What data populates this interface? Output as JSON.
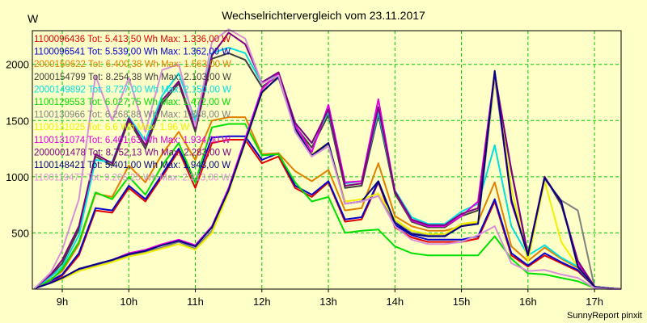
{
  "chart_data": {
    "type": "line",
    "title": "Wechselrichtervergleich vom 23.11.2017",
    "ylabel": "W",
    "xlabel": "",
    "footer": "SunnyReport pinxit",
    "ylim": [
      0,
      2300
    ],
    "xlim": [
      8.55,
      17.4
    ],
    "yticks": [
      500,
      1000,
      1500,
      2000
    ],
    "ytick_labels": [
      "500",
      "1000",
      "1500",
      "2000"
    ],
    "xticks": [
      9,
      10,
      11,
      12,
      13,
      14,
      15,
      16,
      17
    ],
    "xtick_labels": [
      "9h",
      "10h",
      "11h",
      "12h",
      "13h",
      "14h",
      "15h",
      "16h",
      "17h"
    ],
    "grid": true,
    "legend_position": "top-left",
    "x": [
      8.58,
      8.83,
      9.0,
      9.25,
      9.5,
      9.75,
      10.0,
      10.25,
      10.5,
      10.75,
      11.0,
      11.25,
      11.5,
      11.75,
      12.0,
      12.25,
      12.5,
      12.75,
      13.0,
      13.25,
      13.5,
      13.75,
      14.0,
      14.25,
      14.5,
      14.75,
      15.0,
      15.25,
      15.5,
      15.75,
      16.0,
      16.25,
      16.5,
      16.75,
      17.0,
      17.25,
      17.4
    ],
    "series": [
      {
        "name": "1100096436",
        "label": "1100096436 Tot: 5.413,50 Wh Max: 1.336,00 W",
        "color": "#e00000",
        "values": [
          5,
          70,
          120,
          300,
          700,
          680,
          900,
          780,
          1000,
          1230,
          900,
          1300,
          1330,
          1330,
          1120,
          1180,
          900,
          820,
          950,
          600,
          620,
          950,
          550,
          460,
          420,
          420,
          420,
          450,
          780,
          300,
          200,
          300,
          230,
          160,
          20,
          5,
          0
        ]
      },
      {
        "name": "1100096541",
        "label": "1100096541 Tot: 5.539,00 Wh Max: 1.362,00 W",
        "color": "#0000d0",
        "values": [
          5,
          75,
          130,
          320,
          720,
          700,
          920,
          800,
          1020,
          1250,
          950,
          1350,
          1360,
          1360,
          1150,
          1210,
          920,
          840,
          960,
          620,
          640,
          960,
          570,
          480,
          440,
          440,
          440,
          470,
          800,
          320,
          210,
          320,
          240,
          170,
          20,
          5,
          0
        ]
      },
      {
        "name": "2000150622",
        "label": "2000150622 Tot: 6.400,38 Wh Max: 1.563,00 W",
        "color": "#e08000",
        "values": [
          5,
          90,
          160,
          400,
          850,
          820,
          1100,
          950,
          1200,
          1400,
          1150,
          1500,
          1530,
          1530,
          1200,
          1210,
          1050,
          960,
          1060,
          700,
          720,
          1120,
          650,
          560,
          520,
          520,
          560,
          600,
          950,
          380,
          250,
          370,
          270,
          190,
          20,
          5,
          0
        ]
      },
      {
        "name": "2000154799",
        "label": "2000154799 Tot: 8.254,38 Wh Max: 2.103,00 W",
        "color": "#404040",
        "values": [
          5,
          120,
          230,
          530,
          1180,
          1100,
          1500,
          1250,
          1650,
          1830,
          1400,
          2050,
          2100,
          2040,
          1800,
          1900,
          1450,
          1260,
          1550,
          900,
          920,
          1550,
          850,
          600,
          550,
          550,
          650,
          700,
          1900,
          1050,
          300,
          1000,
          750,
          250,
          20,
          5,
          0
        ]
      },
      {
        "name": "2000149892",
        "label": "2000149892 Tot: 8.727,00 Wh Max: 2.150,00 W",
        "color": "#00e0e0",
        "values": [
          5,
          110,
          200,
          480,
          1150,
          1130,
          1530,
          1320,
          1720,
          1920,
          1500,
          2100,
          2150,
          2100,
          1830,
          1920,
          1480,
          1300,
          1580,
          940,
          960,
          1580,
          880,
          640,
          580,
          580,
          690,
          760,
          1280,
          560,
          300,
          390,
          280,
          200,
          20,
          5,
          0
        ]
      },
      {
        "name": "1100129553",
        "label": "1100129553 Tot: 6.027,75 Wh Max: 1.472,00 W",
        "color": "#00e000",
        "values": [
          5,
          80,
          180,
          420,
          860,
          800,
          1000,
          840,
          1100,
          1300,
          950,
          1440,
          1470,
          1470,
          1190,
          1200,
          950,
          780,
          820,
          500,
          520,
          530,
          380,
          320,
          300,
          300,
          300,
          300,
          470,
          270,
          140,
          130,
          100,
          70,
          10,
          0,
          0
        ]
      },
      {
        "name": "1100130966",
        "label": "1100130966 Tot: 6.268,88 Wh Max: 1.888,00 W",
        "color": "#808080",
        "values": [
          5,
          60,
          100,
          170,
          210,
          250,
          300,
          330,
          370,
          420,
          360,
          520,
          880,
          1320,
          1760,
          1880,
          1420,
          1180,
          1290,
          760,
          780,
          830,
          600,
          500,
          480,
          480,
          560,
          580,
          1880,
          800,
          300,
          980,
          790,
          700,
          20,
          5,
          0
        ]
      },
      {
        "name": "1100131025",
        "label": "1100131025 Tot: 6.6 Wh Max: 1.96 W",
        "color": "#f0f000",
        "values": [
          5,
          55,
          90,
          160,
          200,
          240,
          290,
          320,
          360,
          400,
          350,
          500,
          860,
          1300,
          1740,
          1900,
          1440,
          1200,
          1300,
          780,
          800,
          850,
          620,
          520,
          490,
          490,
          580,
          600,
          1900,
          900,
          250,
          960,
          420,
          200,
          20,
          5,
          0
        ]
      },
      {
        "name": "1100131074",
        "label": "1100131074 Tot: 6.401,63 Wh Max: 1.934,00 W",
        "color": "#e000e0",
        "values": [
          5,
          60,
          100,
          180,
          220,
          260,
          320,
          350,
          400,
          440,
          390,
          560,
          900,
          1340,
          1780,
          1920,
          1460,
          1220,
          1640,
          950,
          960,
          1690,
          870,
          610,
          560,
          560,
          650,
          780,
          1934,
          770,
          310,
          990,
          780,
          220,
          20,
          5,
          0
        ]
      },
      {
        "name": "2000001478",
        "label": "2000001478 Tot: 8.752,13 Wh Max: 2.283,00 W",
        "color": "#800080",
        "values": [
          5,
          130,
          260,
          560,
          1200,
          1120,
          1520,
          1280,
          1680,
          1850,
          1430,
          2080,
          2283,
          2180,
          1840,
          1930,
          1480,
          1300,
          1600,
          920,
          940,
          1620,
          870,
          620,
          570,
          570,
          670,
          720,
          1920,
          1060,
          310,
          1000,
          770,
          250,
          20,
          5,
          0
        ]
      },
      {
        "name": "1100148421",
        "label": "1100148421 Tot: 5.401,00 Wh Max: 1.943,00 W",
        "color": "#000080",
        "values": [
          5,
          55,
          100,
          180,
          220,
          260,
          310,
          340,
          390,
          430,
          380,
          550,
          880,
          1310,
          1750,
          1890,
          1430,
          1190,
          1300,
          760,
          780,
          960,
          590,
          490,
          470,
          470,
          560,
          580,
          1943,
          790,
          300,
          990,
          780,
          200,
          20,
          5,
          0
        ]
      },
      {
        "name": "1100119477",
        "label": "1100119477 Tot: 9.205,25 Wh Max: 2.313,00 W",
        "color": "#d890d8",
        "values": [
          5,
          150,
          350,
          800,
          1900,
          1500,
          1880,
          1400,
          1950,
          2000,
          1450,
          2200,
          2313,
          2230,
          1830,
          1900,
          1400,
          1180,
          1270,
          760,
          780,
          830,
          560,
          440,
          400,
          400,
          420,
          480,
          560,
          230,
          160,
          170,
          130,
          100,
          10,
          0,
          0
        ]
      }
    ]
  }
}
